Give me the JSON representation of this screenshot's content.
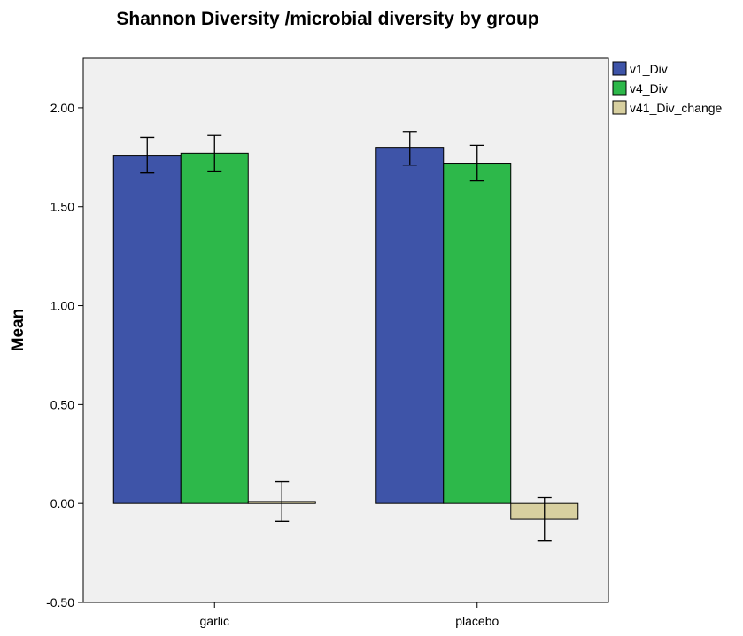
{
  "chart_data": {
    "type": "bar",
    "title": "Shannon Diversity /microbial diversity by group",
    "xlabel": "",
    "ylabel": "Mean",
    "categories": [
      "garlic",
      "placebo"
    ],
    "ylim": [
      -0.5,
      2.25
    ],
    "yticks": [
      -0.5,
      0,
      0.5,
      1,
      1.5,
      2
    ],
    "ytick_labels": [
      "-0.50",
      "0.00",
      "0.50",
      "1.00",
      "1.50",
      "2.00"
    ],
    "grid": false,
    "legend_position": "top-right",
    "series": [
      {
        "name": "v1_Div",
        "color": "#3e54a8",
        "values": [
          1.76,
          1.8
        ],
        "err_low": [
          1.67,
          1.71
        ],
        "err_high": [
          1.85,
          1.88
        ]
      },
      {
        "name": "v4_Div",
        "color": "#2db84a",
        "values": [
          1.77,
          1.72
        ],
        "err_low": [
          1.68,
          1.63
        ],
        "err_high": [
          1.86,
          1.81
        ]
      },
      {
        "name": "v41_Div_change",
        "color": "#d8d0a0",
        "values": [
          0.01,
          -0.08
        ],
        "err_low": [
          -0.09,
          -0.19
        ],
        "err_high": [
          0.11,
          0.03
        ]
      }
    ]
  }
}
